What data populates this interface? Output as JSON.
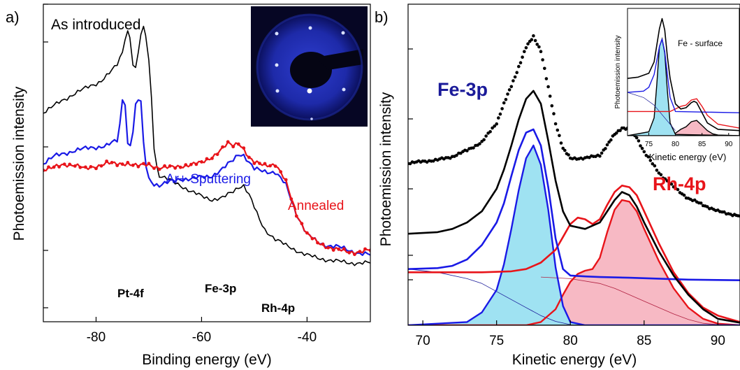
{
  "colors": {
    "black": "#000000",
    "blue": "#1a1ae6",
    "red": "#e8141a",
    "navy": "#1a1a99",
    "fill_blue": "#9fe2f2",
    "fill_red": "#f7b9c4",
    "leed_dark": "#060624",
    "leed_blue": "#2a3acf"
  },
  "chart_data": [
    {
      "id": "a",
      "type": "line",
      "panel_label": "a)",
      "xlabel": "Binding energy (eV)",
      "ylabel": "Photoemission intensity",
      "xlim": [
        -90,
        -28
      ],
      "ylim": [
        0,
        10
      ],
      "xticks": [
        -80,
        -60,
        -40
      ],
      "tick_labels": [
        "-80",
        "-60",
        "-40"
      ],
      "annotations": {
        "as_introduced": "As introduced",
        "ar_sputtering": "Ar+ Sputtering",
        "annealed": "Annealed",
        "pt4f": "Pt-4f",
        "fe3p": "Fe-3p",
        "rh4p": "Rh-4p"
      },
      "inset": {
        "type": "image",
        "description": "LEED pattern"
      },
      "series": [
        {
          "key": "as_introduced",
          "x": [
            -90,
            -88,
            -86,
            -84,
            -82,
            -80,
            -79,
            -78,
            -77,
            -76,
            -75,
            -74.5,
            -74,
            -73.6,
            -73,
            -72.5,
            -72,
            -71.5,
            -71,
            -70.6,
            -70,
            -69.5,
            -69,
            -68.5,
            -68,
            -66,
            -64,
            -62,
            -60,
            -58,
            -56,
            -54,
            -53,
            -52,
            -51,
            -50,
            -49,
            -48,
            -46,
            -44,
            -42,
            -40,
            -38,
            -36,
            -34,
            -32,
            -30,
            -28
          ],
          "y": [
            6.6,
            6.8,
            7.0,
            7.2,
            7.35,
            7.5,
            7.6,
            7.75,
            7.9,
            8.1,
            8.5,
            8.95,
            9.15,
            9.0,
            8.1,
            7.95,
            8.5,
            9.0,
            9.25,
            9.05,
            8.2,
            7.1,
            5.5,
            4.9,
            4.6,
            4.45,
            4.3,
            4.1,
            3.95,
            3.85,
            3.9,
            4.1,
            4.25,
            4.3,
            4.0,
            3.6,
            3.2,
            2.9,
            2.6,
            2.4,
            2.25,
            2.1,
            2.0,
            1.95,
            1.9,
            1.85,
            1.85,
            1.85
          ]
        },
        {
          "key": "ar_sputtering",
          "x": [
            -90,
            -88,
            -86,
            -84,
            -82,
            -80,
            -78,
            -76,
            -75.5,
            -75,
            -74.5,
            -74,
            -73.5,
            -73,
            -72.5,
            -72,
            -71.5,
            -71,
            -70.5,
            -70,
            -69,
            -68,
            -66,
            -64,
            -62,
            -60,
            -58,
            -56,
            -54,
            -53,
            -52,
            -51,
            -50,
            -48,
            -46,
            -44,
            -42,
            -40,
            -38,
            -36,
            -34,
            -32,
            -30,
            -28
          ],
          "y": [
            5.0,
            5.2,
            5.3,
            5.4,
            5.45,
            5.5,
            5.55,
            5.7,
            6.2,
            7.0,
            6.9,
            5.6,
            5.6,
            6.0,
            6.8,
            7.0,
            6.9,
            5.6,
            4.9,
            4.5,
            4.35,
            4.3,
            4.4,
            4.5,
            4.5,
            4.55,
            4.6,
            4.8,
            5.1,
            5.3,
            5.25,
            5.0,
            4.8,
            4.75,
            4.7,
            4.3,
            3.4,
            2.75,
            2.5,
            2.4,
            2.35,
            2.25,
            2.15,
            2.1
          ]
        },
        {
          "key": "annealed",
          "x": [
            -90,
            -88,
            -86,
            -84,
            -82,
            -80,
            -78,
            -76,
            -74,
            -72,
            -70,
            -68,
            -66,
            -64,
            -62,
            -60,
            -58,
            -56,
            -55,
            -54,
            -53,
            -52,
            -51,
            -50,
            -48,
            -46,
            -44,
            -42,
            -40,
            -38,
            -36,
            -34,
            -32,
            -30,
            -28
          ],
          "y": [
            4.8,
            4.85,
            4.95,
            4.95,
            4.8,
            4.9,
            5.0,
            4.95,
            5.0,
            4.9,
            4.95,
            4.85,
            4.85,
            4.9,
            4.95,
            5.0,
            5.2,
            5.45,
            5.6,
            5.55,
            5.65,
            5.45,
            5.15,
            5.0,
            4.95,
            4.95,
            4.4,
            3.4,
            2.75,
            2.5,
            2.35,
            2.25,
            2.2,
            2.2,
            2.25
          ]
        }
      ]
    },
    {
      "id": "b",
      "type": "area",
      "panel_label": "b)",
      "xlabel": "Kinetic energy (eV)",
      "ylabel": "Photoemission intensity",
      "xlim": [
        69,
        91.5
      ],
      "ylim": [
        0,
        10
      ],
      "xticks": [
        70,
        75,
        80,
        85,
        90
      ],
      "tick_labels": [
        "70",
        "75",
        "80",
        "85",
        "90"
      ],
      "annotations": {
        "fe3p": "Fe-3p",
        "rh4p": "Rh-4p"
      },
      "series": [
        {
          "key": "measured",
          "x": [
            69,
            70,
            71,
            72,
            73,
            74,
            75,
            75.5,
            76,
            76.5,
            77,
            77.5,
            78,
            78.5,
            79,
            79.5,
            80,
            81,
            82,
            82.5,
            83,
            83.5,
            84,
            84.5,
            85,
            86,
            87,
            88,
            89,
            90,
            91,
            91.5
          ],
          "y": [
            5.05,
            5.1,
            5.15,
            5.25,
            5.45,
            5.7,
            6.3,
            6.9,
            7.45,
            8.05,
            8.65,
            9.0,
            8.55,
            7.4,
            6.3,
            5.5,
            5.2,
            5.2,
            5.3,
            5.6,
            5.95,
            6.15,
            6.1,
            5.85,
            5.4,
            4.75,
            4.3,
            3.95,
            3.75,
            3.55,
            3.45,
            3.4
          ]
        },
        {
          "key": "fit_envelope",
          "x": [
            69,
            71,
            72,
            73,
            74,
            75,
            75.5,
            76,
            76.5,
            77,
            77.5,
            78,
            78.5,
            79,
            79.5,
            80,
            81,
            82,
            82.5,
            83,
            83.5,
            84,
            84.5,
            85,
            86,
            87,
            88,
            89,
            90,
            91.5
          ],
          "y": [
            2.85,
            2.9,
            3.0,
            3.2,
            3.55,
            4.25,
            4.85,
            5.6,
            6.4,
            7.05,
            7.3,
            6.9,
            5.75,
            4.5,
            3.55,
            3.1,
            3.0,
            3.2,
            3.55,
            3.9,
            4.15,
            4.05,
            3.7,
            3.2,
            2.3,
            1.55,
            0.95,
            0.5,
            0.2,
            0.08
          ]
        },
        {
          "key": "fe_envelope",
          "x": [
            69,
            71,
            72,
            73,
            74,
            75,
            75.5,
            76,
            76.5,
            77,
            77.5,
            78,
            78.5,
            79,
            79.5,
            80,
            81,
            82,
            84,
            86,
            88,
            91.5
          ],
          "y": [
            1.75,
            1.78,
            1.85,
            2.05,
            2.5,
            3.2,
            3.8,
            4.65,
            5.45,
            6.0,
            6.1,
            5.6,
            4.3,
            2.7,
            1.75,
            1.55,
            1.52,
            1.5,
            1.48,
            1.45,
            1.42,
            1.4
          ]
        },
        {
          "key": "fe_component",
          "fill": "fill_blue",
          "x": [
            69,
            73,
            74,
            75,
            75.5,
            76,
            76.5,
            77,
            77.5,
            78,
            78.5,
            79,
            79.5,
            80,
            81,
            91.5
          ],
          "y": [
            0,
            0.1,
            0.4,
            1.1,
            1.9,
            3.0,
            4.2,
            5.2,
            5.6,
            5.0,
            3.6,
            1.8,
            0.6,
            0.1,
            0,
            0
          ]
        },
        {
          "key": "rh_envelope",
          "x": [
            69,
            72,
            74,
            76,
            77,
            78,
            79,
            79.5,
            80,
            80.5,
            81,
            81.5,
            82,
            82.5,
            83,
            83.5,
            84,
            84.5,
            85,
            86,
            87,
            88,
            89,
            90,
            91.5
          ],
          "y": [
            1.65,
            1.65,
            1.65,
            1.68,
            1.75,
            1.95,
            2.35,
            2.75,
            3.15,
            3.35,
            3.3,
            3.15,
            3.3,
            3.75,
            4.15,
            4.35,
            4.3,
            4.05,
            3.55,
            2.55,
            1.65,
            1.0,
            0.55,
            0.3,
            0.1
          ]
        },
        {
          "key": "rh_component",
          "fill": "fill_red",
          "x": [
            69,
            77,
            78,
            79,
            79.5,
            80,
            80.5,
            81,
            81.5,
            82,
            82.5,
            83,
            83.5,
            84,
            84.5,
            85,
            86,
            87,
            88,
            89,
            90,
            91.5
          ],
          "y": [
            0,
            0,
            0.1,
            0.5,
            0.95,
            1.35,
            1.6,
            1.7,
            1.75,
            2.1,
            2.9,
            3.6,
            3.9,
            3.85,
            3.55,
            3.0,
            2.0,
            1.15,
            0.55,
            0.2,
            0.05,
            0
          ]
        },
        {
          "key": "fe_background",
          "x": [
            69,
            71,
            73,
            74,
            75,
            76,
            77,
            78,
            79,
            80
          ],
          "y": [
            1.75,
            1.65,
            1.45,
            1.3,
            1.05,
            0.8,
            0.55,
            0.3,
            0.12,
            0.02
          ]
        },
        {
          "key": "rh_background",
          "x": [
            78,
            80,
            82,
            83,
            84,
            85,
            86,
            87,
            88,
            89,
            90
          ],
          "y": [
            1.5,
            1.45,
            1.3,
            1.15,
            0.95,
            0.75,
            0.55,
            0.35,
            0.18,
            0.06,
            0.02
          ]
        }
      ],
      "inset": {
        "ylabel": "Photoemission intensity",
        "xlabel": "Kinetic energy (eV)",
        "annotation": "Fe - surface",
        "xlim": [
          71,
          92
        ],
        "ylim": [
          0,
          10
        ],
        "xticks": [
          75,
          80,
          85,
          90
        ],
        "tick_labels": [
          "75",
          "80",
          "85",
          "90"
        ],
        "series": [
          {
            "key": "envelope",
            "x": [
              71,
              73,
              75,
              76,
              77,
              77.5,
              78,
              78.5,
              79,
              80,
              81,
              82,
              83,
              83.5,
              84,
              85,
              86,
              88,
              92
            ],
            "y": [
              4.5,
              4.6,
              4.9,
              5.8,
              8.4,
              9.2,
              8.3,
              6.2,
              4.5,
              2.5,
              2.1,
              2.2,
              2.6,
              2.7,
              2.6,
              1.8,
              1.0,
              0.5,
              0.4
            ]
          },
          {
            "key": "fe_component",
            "fill": "fill_blue",
            "x": [
              71,
              75,
              76,
              76.5,
              77,
              77.5,
              78,
              78.5,
              79,
              80,
              92
            ],
            "y": [
              0,
              0.3,
              1.4,
              4.0,
              7.0,
              7.6,
              6.5,
              3.5,
              1.0,
              0.1,
              0
            ]
          },
          {
            "key": "fe_envelope",
            "x": [
              71,
              74,
              75,
              76,
              77,
              77.5,
              78,
              79,
              80,
              92
            ],
            "y": [
              3.4,
              3.5,
              3.8,
              4.8,
              7.0,
              7.6,
              6.6,
              3.0,
              1.9,
              1.8
            ]
          },
          {
            "key": "rh_component",
            "fill": "fill_red",
            "x": [
              71,
              79,
              80,
              81,
              82,
              83,
              84,
              85,
              86,
              87,
              88,
              92
            ],
            "y": [
              0,
              0,
              0.2,
              0.5,
              0.7,
              1.1,
              1.2,
              0.8,
              0.4,
              0.15,
              0.05,
              0
            ]
          },
          {
            "key": "rh_envelope",
            "x": [
              71,
              78,
              79,
              80,
              81,
              82,
              83,
              84,
              85,
              86,
              88,
              92
            ],
            "y": [
              1.9,
              1.9,
              1.9,
              2.1,
              2.3,
              2.4,
              2.8,
              2.9,
              2.3,
              1.6,
              0.9,
              0.6
            ]
          },
          {
            "key": "fe_background",
            "x": [
              71,
              74,
              76,
              78,
              80
            ],
            "y": [
              3.4,
              3.0,
              2.4,
              1.4,
              0.4
            ]
          }
        ]
      }
    }
  ]
}
